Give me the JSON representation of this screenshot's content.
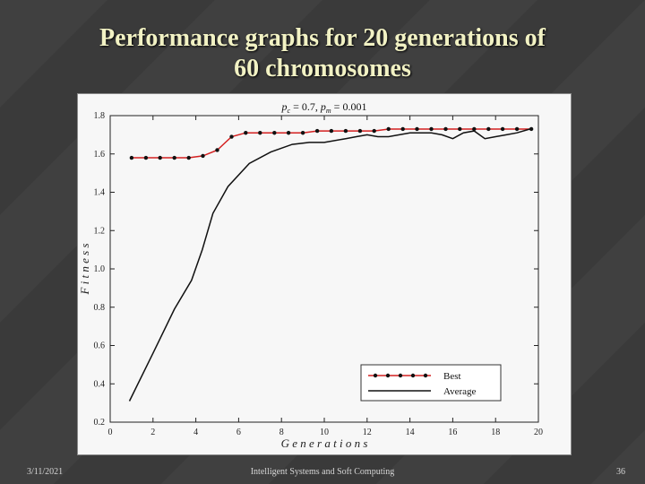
{
  "slide": {
    "title_line1": "Performance graphs for 20 generations of",
    "title_line2": "60 chromosomes",
    "footer_date": "3/11/2021",
    "footer_center": "Intelligent Systems and Soft Computing",
    "footer_page": "36"
  },
  "chart_data": {
    "type": "line",
    "title_parts": [
      "p",
      "c",
      " = 0.7,  ",
      "p",
      "m",
      " = 0.001"
    ],
    "xlabel": "G e n e r a t i o n s",
    "ylabel": "F i t n e s s",
    "xlim": [
      0,
      20
    ],
    "ylim": [
      0.2,
      1.8
    ],
    "xticks": [
      "0",
      "2",
      "4",
      "6",
      "8",
      "10",
      "12",
      "14",
      "16",
      "18",
      "20"
    ],
    "yticks": [
      "0.2",
      "0.4",
      "0.6",
      "0.8",
      "1.0",
      "1.2",
      "1.4",
      "1.6",
      "1.8"
    ],
    "grid": false,
    "legend_position": "bottom-right",
    "series": [
      {
        "name": "Best",
        "color": "#d42020",
        "marker": "dot",
        "x": [
          1,
          1.67,
          2.33,
          3,
          3.67,
          4.33,
          5,
          5.67,
          6.33,
          7,
          7.67,
          8.33,
          9,
          9.67,
          10.33,
          11,
          11.67,
          12.33,
          13,
          13.67,
          14.33,
          15,
          15.67,
          16.33,
          17,
          17.67,
          18.33,
          19,
          19.67
        ],
        "y": [
          1.58,
          1.58,
          1.58,
          1.58,
          1.58,
          1.59,
          1.62,
          1.69,
          1.71,
          1.71,
          1.71,
          1.71,
          1.71,
          1.72,
          1.72,
          1.72,
          1.72,
          1.72,
          1.73,
          1.73,
          1.73,
          1.73,
          1.73,
          1.73,
          1.73,
          1.73,
          1.73,
          1.73,
          1.73
        ]
      },
      {
        "name": "Average",
        "color": "#111111",
        "marker": "none",
        "x": [
          0.9,
          2,
          3,
          3.8,
          4.3,
          4.8,
          5.5,
          6.5,
          7.5,
          8.5,
          9.3,
          10,
          11,
          11.5,
          12,
          12.5,
          13,
          14,
          15,
          15.5,
          16,
          16.5,
          17,
          17.5,
          18,
          18.5,
          19,
          19.6
        ],
        "y": [
          0.31,
          0.56,
          0.79,
          0.94,
          1.1,
          1.29,
          1.43,
          1.55,
          1.61,
          1.65,
          1.66,
          1.66,
          1.68,
          1.69,
          1.7,
          1.69,
          1.69,
          1.71,
          1.71,
          1.7,
          1.68,
          1.71,
          1.72,
          1.68,
          1.69,
          1.7,
          1.71,
          1.73
        ]
      }
    ]
  }
}
